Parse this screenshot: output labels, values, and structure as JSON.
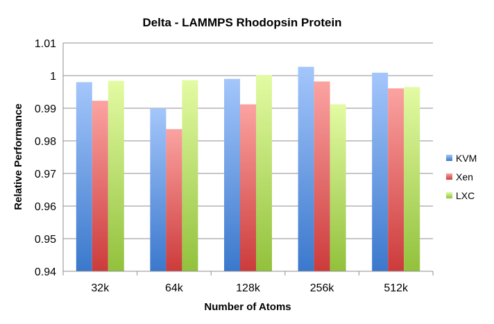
{
  "chart_data": {
    "type": "bar",
    "title": "Delta - LAMMPS Rhodopsin Protein",
    "xlabel": "Number of Atoms",
    "ylabel": "Relative Performance",
    "categories": [
      "32k",
      "64k",
      "128k",
      "256k",
      "512k"
    ],
    "ylim": [
      0.94,
      1.01
    ],
    "yticks": [
      "0.94",
      "0.95",
      "0.96",
      "0.97",
      "0.98",
      "0.99",
      "1",
      "1.01"
    ],
    "grid": true,
    "legend_position": "right",
    "series": [
      {
        "name": "KVM",
        "values": [
          0.998,
          0.99,
          0.999,
          1.0027,
          1.0009
        ],
        "color_top": "#a4c6fb",
        "color_bottom": "#3b78cc"
      },
      {
        "name": "Xen",
        "values": [
          0.9923,
          0.9836,
          0.9912,
          0.9982,
          0.9961
        ],
        "color_top": "#fba3a1",
        "color_bottom": "#cc3b3b"
      },
      {
        "name": "LXC",
        "values": [
          0.9984,
          0.9986,
          1.0002,
          0.9912,
          0.9965
        ],
        "color_top": "#e3fba3",
        "color_bottom": "#92c13c"
      }
    ]
  }
}
